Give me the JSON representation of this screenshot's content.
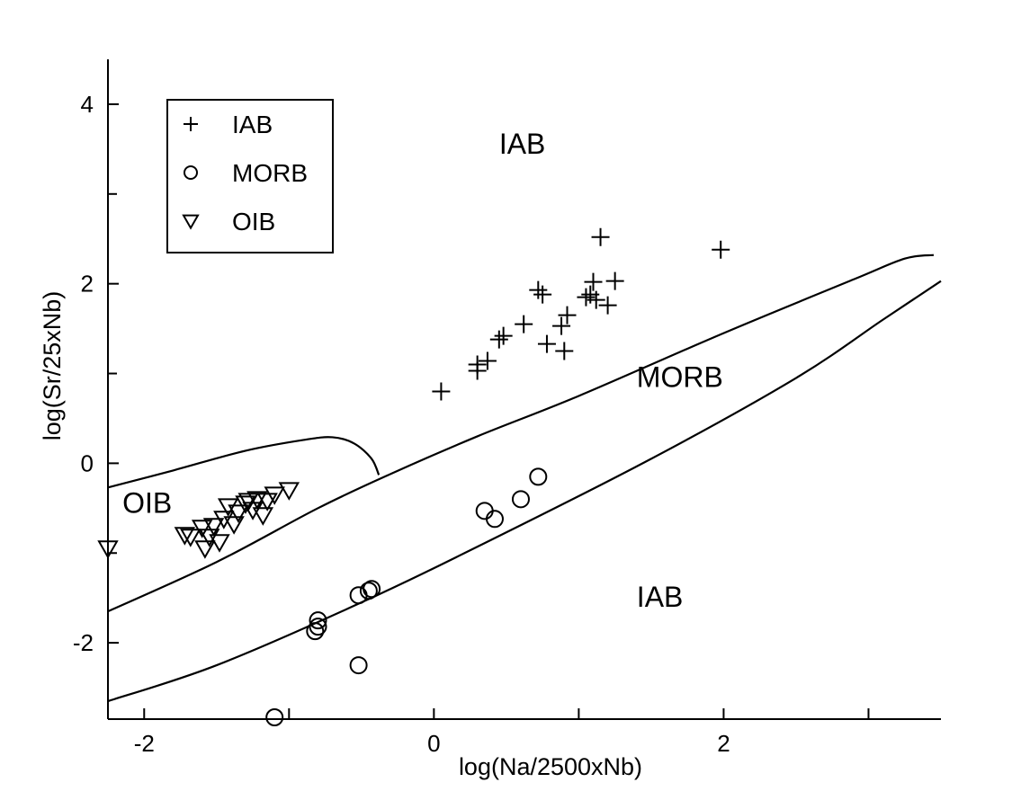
{
  "chart_data": {
    "type": "scatter",
    "title": "",
    "xlabel": "log(Na/2500xNb)",
    "ylabel": "log(Sr/25xNb)",
    "xlim": [
      -2.25,
      3.5
    ],
    "ylim": [
      -2.85,
      4.5
    ],
    "x_ticks": [
      "-2",
      "0",
      "2"
    ],
    "x_tick_values": [
      -2,
      0,
      2
    ],
    "x_minor_tick_values": [
      -1,
      1,
      3
    ],
    "y_ticks": [
      "-2",
      "0",
      "2",
      "4"
    ],
    "y_tick_values": [
      -2,
      0,
      2,
      4
    ],
    "y_minor_tick_values": [
      -1,
      1,
      3
    ],
    "grid": false,
    "legend": {
      "placement": "top-left",
      "entries": [
        {
          "label": "IAB",
          "marker": "plus"
        },
        {
          "label": "MORB",
          "marker": "circle"
        },
        {
          "label": "OIB",
          "marker": "triangle-down"
        }
      ]
    },
    "region_labels": [
      {
        "text": "IAB",
        "x": 0.45,
        "y": 3.45
      },
      {
        "text": "MORB",
        "x": 1.4,
        "y": 0.85
      },
      {
        "text": "OIB",
        "x": -2.15,
        "y": -0.55
      },
      {
        "text": "IAB",
        "x": 1.4,
        "y": -1.6
      }
    ],
    "boundaries": [
      {
        "points": [
          [
            -2.25,
            -1.65
          ],
          [
            -1.5,
            -1.1
          ],
          [
            -0.8,
            -0.5
          ],
          [
            -0.3,
            -0.12
          ],
          [
            0.3,
            0.3
          ],
          [
            1.0,
            0.75
          ],
          [
            2.0,
            1.45
          ],
          [
            2.9,
            2.05
          ],
          [
            3.25,
            2.28
          ],
          [
            3.45,
            2.32
          ]
        ]
      },
      {
        "points": [
          [
            -2.25,
            -2.65
          ],
          [
            -1.5,
            -2.25
          ],
          [
            -0.5,
            -1.55
          ],
          [
            0.4,
            -0.85
          ],
          [
            1.5,
            0.05
          ],
          [
            2.5,
            0.95
          ],
          [
            3.1,
            1.6
          ],
          [
            3.5,
            2.03
          ]
        ]
      },
      {
        "points": [
          [
            -2.25,
            -0.27
          ],
          [
            -1.8,
            -0.08
          ],
          [
            -1.3,
            0.14
          ],
          [
            -0.9,
            0.26
          ],
          [
            -0.7,
            0.29
          ],
          [
            -0.55,
            0.22
          ],
          [
            -0.43,
            0.05
          ],
          [
            -0.38,
            -0.13
          ]
        ]
      }
    ],
    "series": [
      {
        "name": "IAB",
        "marker": "plus",
        "points": [
          [
            0.05,
            0.8
          ],
          [
            0.3,
            1.03
          ],
          [
            0.3,
            1.1
          ],
          [
            0.37,
            1.14
          ],
          [
            0.45,
            1.38
          ],
          [
            0.48,
            1.42
          ],
          [
            0.62,
            1.55
          ],
          [
            0.72,
            1.93
          ],
          [
            0.75,
            1.88
          ],
          [
            0.78,
            1.33
          ],
          [
            0.88,
            1.53
          ],
          [
            0.9,
            1.25
          ],
          [
            0.92,
            1.65
          ],
          [
            1.05,
            1.85
          ],
          [
            1.08,
            1.88
          ],
          [
            1.1,
            2.02
          ],
          [
            1.12,
            1.82
          ],
          [
            1.15,
            2.52
          ],
          [
            1.2,
            1.76
          ],
          [
            1.25,
            2.03
          ],
          [
            1.98,
            2.38
          ]
        ]
      },
      {
        "name": "MORB",
        "marker": "circle",
        "points": [
          [
            -1.1,
            -2.83
          ],
          [
            -0.82,
            -1.87
          ],
          [
            -0.8,
            -1.75
          ],
          [
            -0.8,
            -1.82
          ],
          [
            -0.52,
            -2.25
          ],
          [
            -0.52,
            -1.47
          ],
          [
            -0.45,
            -1.42
          ],
          [
            -0.43,
            -1.4
          ],
          [
            0.35,
            -0.53
          ],
          [
            0.42,
            -0.62
          ],
          [
            0.6,
            -0.4
          ],
          [
            0.72,
            -0.15
          ]
        ]
      },
      {
        "name": "OIB",
        "marker": "triangle-down",
        "points": [
          [
            -2.25,
            -0.95
          ],
          [
            -1.72,
            -0.8
          ],
          [
            -1.68,
            -0.82
          ],
          [
            -1.6,
            -0.72
          ],
          [
            -1.58,
            -0.95
          ],
          [
            -1.55,
            -0.82
          ],
          [
            -1.52,
            -0.7
          ],
          [
            -1.48,
            -0.88
          ],
          [
            -1.45,
            -0.62
          ],
          [
            -1.42,
            -0.48
          ],
          [
            -1.38,
            -0.68
          ],
          [
            -1.35,
            -0.55
          ],
          [
            -1.3,
            -0.45
          ],
          [
            -1.28,
            -0.42
          ],
          [
            -1.25,
            -0.52
          ],
          [
            -1.22,
            -0.4
          ],
          [
            -1.18,
            -0.58
          ],
          [
            -1.15,
            -0.42
          ],
          [
            -1.1,
            -0.35
          ],
          [
            -1.0,
            -0.3
          ]
        ]
      }
    ]
  }
}
